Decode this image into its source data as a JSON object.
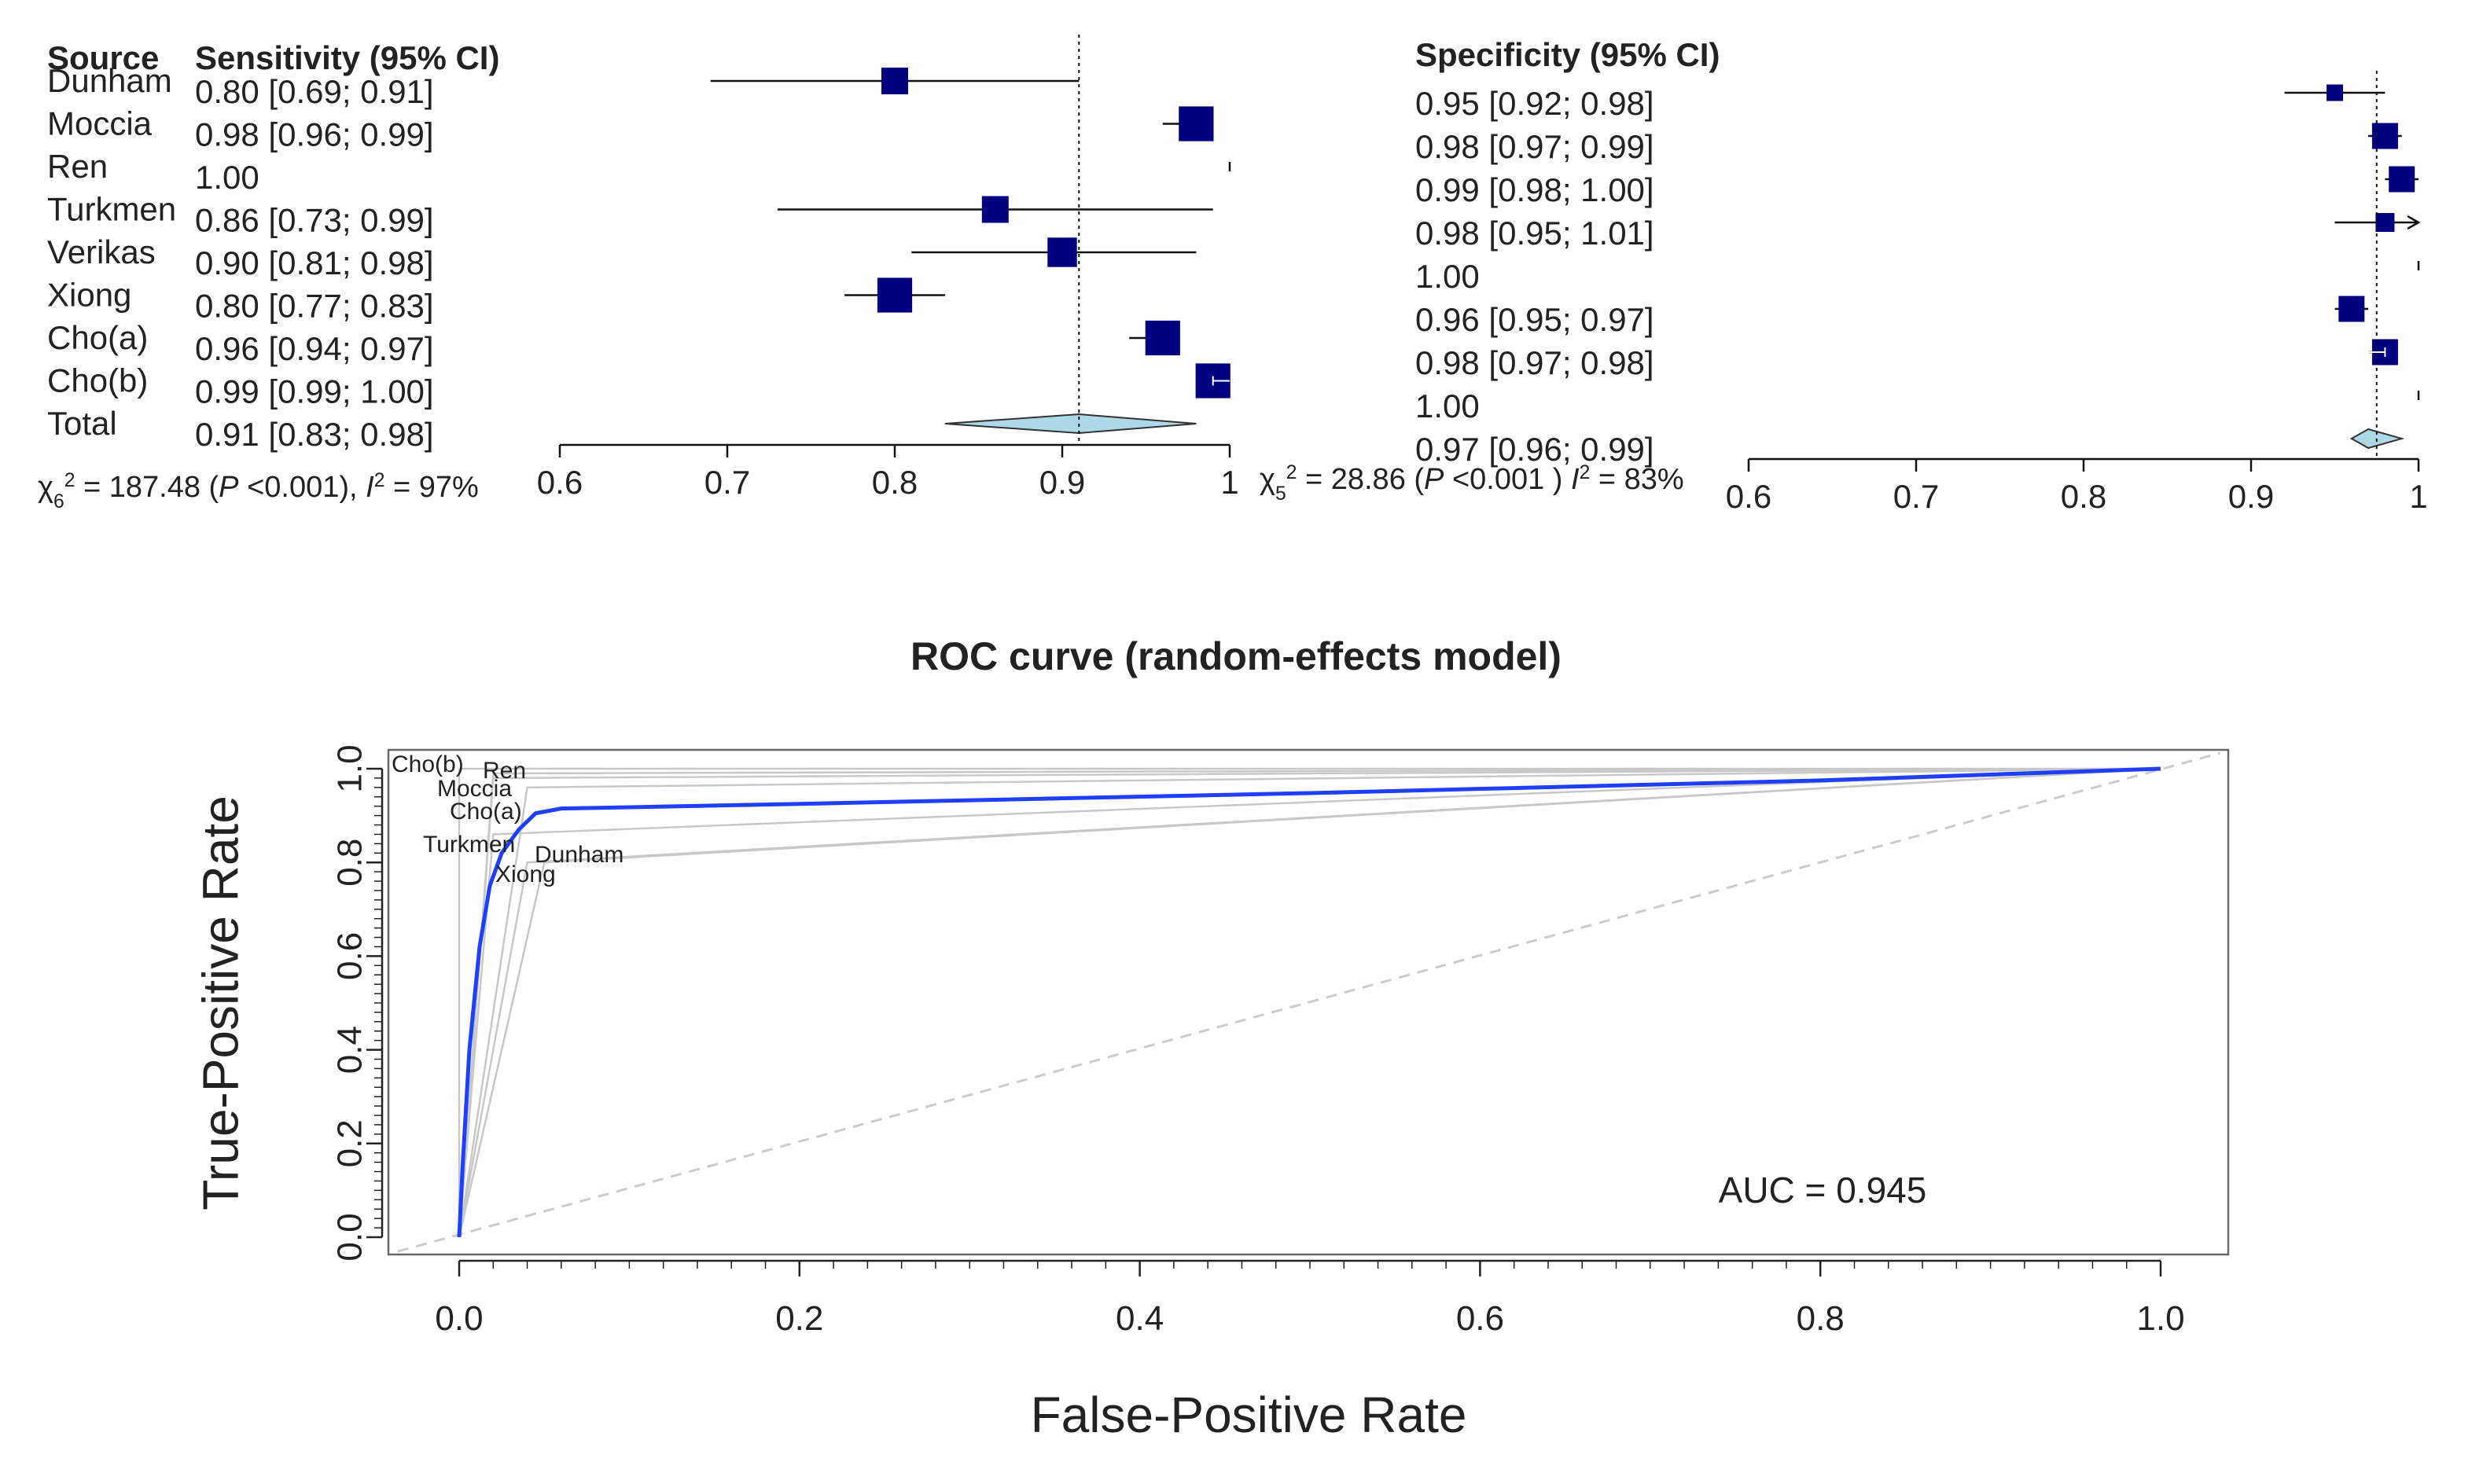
{
  "chart_data": [
    {
      "type": "forest",
      "id": "sensitivity",
      "header_source": "Source",
      "header_stat": "Sensitivity (95% CI)",
      "studies": [
        {
          "name": "Dunham",
          "label": "0.80 [0.69; 0.91]",
          "est": 0.8,
          "lo": 0.69,
          "hi": 0.91,
          "weight": 1.0
        },
        {
          "name": "Moccia",
          "label": "0.98 [0.96; 0.99]",
          "est": 0.98,
          "lo": 0.96,
          "hi": 0.99,
          "weight": 1.3
        },
        {
          "name": "Ren",
          "label": "1.00",
          "est": 1.0,
          "lo": 1.0,
          "hi": 1.0,
          "weight": 0.0
        },
        {
          "name": "Turkmen",
          "label": "0.86 [0.73; 0.99]",
          "est": 0.86,
          "lo": 0.73,
          "hi": 0.99,
          "weight": 1.0
        },
        {
          "name": "Verikas",
          "label": "0.90 [0.81; 0.98]",
          "est": 0.9,
          "lo": 0.81,
          "hi": 0.98,
          "weight": 1.1
        },
        {
          "name": "Xiong",
          "label": "0.80 [0.77; 0.83]",
          "est": 0.8,
          "lo": 0.77,
          "hi": 0.83,
          "weight": 1.3
        },
        {
          "name": "Cho(a)",
          "label": "0.96 [0.94; 0.97]",
          "est": 0.96,
          "lo": 0.94,
          "hi": 0.97,
          "weight": 1.3
        },
        {
          "name": "Cho(b)",
          "label": "0.99 [0.99; 1.00]",
          "est": 0.99,
          "lo": 0.99,
          "hi": 1.0,
          "weight": 1.3
        }
      ],
      "total": {
        "name": "Total",
        "label": "0.91 [0.83; 0.98]",
        "est": 0.91,
        "lo": 0.83,
        "hi": 0.98
      },
      "heterogeneity": {
        "chi_df": "6",
        "stat": "= 187.48 (",
        "p_text": " <0.001), ",
        "i2_text": " = 97%"
      },
      "xlim": [
        0.6,
        1.0
      ],
      "ticks": [
        "0.6",
        "0.7",
        "0.8",
        "0.9",
        "1"
      ],
      "reference": 0.91
    },
    {
      "type": "forest",
      "id": "specificity",
      "header_stat": "Specificity (95% CI)",
      "studies": [
        {
          "label": "0.95 [0.92; 0.98]",
          "est": 0.95,
          "lo": 0.92,
          "hi": 0.98,
          "weight": 0.7
        },
        {
          "label": "0.98 [0.97; 0.99]",
          "est": 0.98,
          "lo": 0.97,
          "hi": 0.99,
          "weight": 1.1
        },
        {
          "label": "0.99 [0.98; 1.00]",
          "est": 0.99,
          "lo": 0.98,
          "hi": 1.0,
          "weight": 1.1
        },
        {
          "label": "0.98 [0.95; 1.01]",
          "est": 0.98,
          "lo": 0.95,
          "hi": 1.01,
          "weight": 0.8,
          "arrow": true
        },
        {
          "label": "1.00",
          "est": 1.0,
          "lo": 1.0,
          "hi": 1.0,
          "weight": 0.0
        },
        {
          "label": "0.96 [0.95; 0.97]",
          "est": 0.96,
          "lo": 0.95,
          "hi": 0.97,
          "weight": 1.1
        },
        {
          "label": "0.98 [0.97; 0.98]",
          "est": 0.98,
          "lo": 0.97,
          "hi": 0.98,
          "weight": 1.1
        },
        {
          "label": "1.00",
          "est": 1.0,
          "lo": 1.0,
          "hi": 1.0,
          "weight": 0.0
        }
      ],
      "total": {
        "label": "0.97 [0.96; 0.99]",
        "est": 0.97,
        "lo": 0.96,
        "hi": 0.99
      },
      "heterogeneity": {
        "chi_df": "5",
        "stat": "= 28.86 (",
        "p_text": " <0.001 ) ",
        "i2_text": " = 83%"
      },
      "xlim": [
        0.6,
        1.0
      ],
      "ticks": [
        "0.6",
        "0.7",
        "0.8",
        "0.9",
        "1"
      ],
      "reference": 0.975
    },
    {
      "type": "line",
      "id": "roc",
      "title": "ROC curve (random-effects model)",
      "xlabel": "False-Positive Rate",
      "ylabel": "True-Positive Rate",
      "xlim": [
        0,
        1
      ],
      "ylim": [
        0,
        1
      ],
      "x_ticks": [
        "0.0",
        "0.2",
        "0.4",
        "0.6",
        "0.8",
        "1.0"
      ],
      "y_ticks": [
        "0.0",
        "0.2",
        "0.4",
        "0.6",
        "0.8",
        "1.0"
      ],
      "summary_curve": {
        "x": [
          0,
          0.002,
          0.006,
          0.012,
          0.018,
          0.025,
          0.035,
          0.045,
          0.06,
          0.2,
          0.5,
          0.8,
          1.0
        ],
        "y": [
          0,
          0.15,
          0.4,
          0.62,
          0.75,
          0.82,
          0.87,
          0.905,
          0.915,
          0.925,
          0.948,
          0.975,
          1.0
        ]
      },
      "study_points": [
        {
          "name": "Cho(b)",
          "fpr": 0.02,
          "tpr": 0.99
        },
        {
          "name": "Ren",
          "fpr": 0.0,
          "tpr": 1.0
        },
        {
          "name": "Moccia",
          "fpr": 0.02,
          "tpr": 0.98
        },
        {
          "name": "Cho(a)",
          "fpr": 0.04,
          "tpr": 0.96
        },
        {
          "name": "Turkmen",
          "fpr": 0.02,
          "tpr": 0.86
        },
        {
          "name": "Dunham",
          "fpr": 0.05,
          "tpr": 0.8
        },
        {
          "name": "Xiong",
          "fpr": 0.04,
          "tpr": 0.8
        }
      ],
      "annotation": "AUC = 0.945"
    }
  ]
}
